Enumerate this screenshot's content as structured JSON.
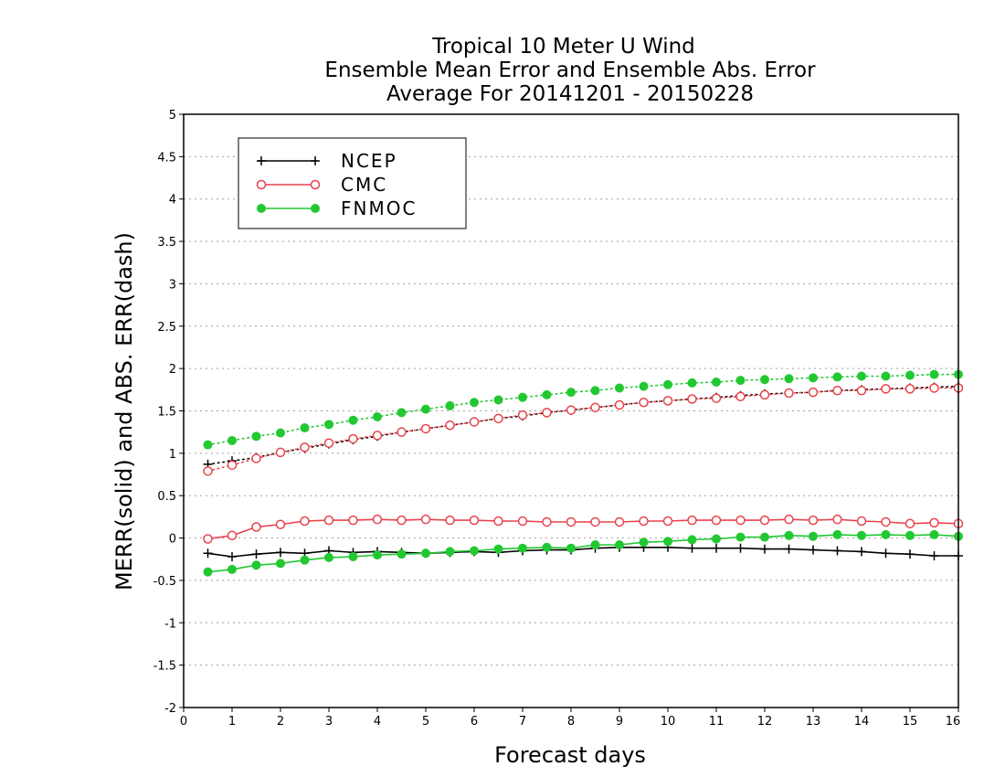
{
  "chart_data": {
    "type": "line",
    "title": [
      "Tropical 10 Meter U Wind",
      "Ensemble Mean Error and Ensemble Abs. Error",
      "Average For 20141201 - 20150228"
    ],
    "xlabel": "Forecast days",
    "ylabel": "MERR(solid) and ABS. ERR(dash)",
    "xlim": [
      0,
      16
    ],
    "ylim": [
      -2,
      5
    ],
    "xticks": [
      0,
      1,
      2,
      3,
      4,
      5,
      6,
      7,
      8,
      9,
      10,
      11,
      12,
      13,
      14,
      15,
      16
    ],
    "yticks": [
      -2,
      -1.5,
      -1,
      -0.5,
      0,
      0.5,
      1,
      1.5,
      2,
      2.5,
      3,
      3.5,
      4,
      4.5,
      5
    ],
    "ytick_labels": [
      "-2",
      "-1.5",
      "-1",
      "-0.5",
      "0",
      "0.5",
      "1",
      "1.5",
      "2",
      "2.5",
      "3",
      "3.5",
      "4",
      "4.5",
      "5"
    ],
    "grid": "horizontal dotted",
    "legend_position": "top-left",
    "x": [
      0.5,
      1,
      1.5,
      2,
      2.5,
      3,
      3.5,
      4,
      4.5,
      5,
      5.5,
      6,
      6.5,
      7,
      7.5,
      8,
      8.5,
      9,
      9.5,
      10,
      10.5,
      11,
      11.5,
      12,
      12.5,
      13,
      13.5,
      14,
      14.5,
      15,
      15.5,
      16
    ],
    "series": [
      {
        "name": "NCEP",
        "color": "#000000",
        "marker": "plus",
        "merr": [
          -0.18,
          -0.22,
          -0.19,
          -0.17,
          -0.18,
          -0.15,
          -0.17,
          -0.16,
          -0.17,
          -0.18,
          -0.17,
          -0.16,
          -0.17,
          -0.15,
          -0.14,
          -0.14,
          -0.12,
          -0.11,
          -0.11,
          -0.11,
          -0.12,
          -0.12,
          -0.12,
          -0.13,
          -0.13,
          -0.14,
          -0.15,
          -0.16,
          -0.18,
          -0.19,
          -0.21,
          -0.21
        ],
        "abs_err": [
          0.87,
          0.91,
          0.95,
          1.01,
          1.06,
          1.11,
          1.16,
          1.2,
          1.25,
          1.29,
          1.33,
          1.37,
          1.41,
          1.44,
          1.48,
          1.51,
          1.54,
          1.57,
          1.6,
          1.62,
          1.64,
          1.66,
          1.68,
          1.7,
          1.71,
          1.72,
          1.74,
          1.75,
          1.76,
          1.77,
          1.78,
          1.79
        ]
      },
      {
        "name": "CMC",
        "color": "#e8434b",
        "marker": "open-circle",
        "merr": [
          -0.01,
          0.03,
          0.13,
          0.16,
          0.2,
          0.21,
          0.21,
          0.22,
          0.21,
          0.22,
          0.21,
          0.21,
          0.2,
          0.2,
          0.19,
          0.19,
          0.19,
          0.19,
          0.2,
          0.2,
          0.21,
          0.21,
          0.21,
          0.21,
          0.22,
          0.21,
          0.22,
          0.2,
          0.19,
          0.17,
          0.18,
          0.17
        ],
        "abs_err": [
          0.79,
          0.86,
          0.94,
          1.01,
          1.07,
          1.12,
          1.17,
          1.21,
          1.25,
          1.29,
          1.33,
          1.37,
          1.41,
          1.45,
          1.48,
          1.51,
          1.54,
          1.57,
          1.6,
          1.62,
          1.64,
          1.65,
          1.67,
          1.69,
          1.71,
          1.72,
          1.74,
          1.74,
          1.76,
          1.76,
          1.77,
          1.77
        ]
      },
      {
        "name": "FNMOC",
        "color": "#22c832",
        "marker": "filled-circle",
        "merr": [
          -0.4,
          -0.37,
          -0.32,
          -0.3,
          -0.26,
          -0.23,
          -0.22,
          -0.2,
          -0.19,
          -0.18,
          -0.16,
          -0.15,
          -0.13,
          -0.12,
          -0.11,
          -0.12,
          -0.08,
          -0.08,
          -0.05,
          -0.04,
          -0.02,
          -0.01,
          0.01,
          0.01,
          0.03,
          0.02,
          0.04,
          0.03,
          0.04,
          0.03,
          0.04,
          0.02
        ],
        "abs_err": [
          1.1,
          1.15,
          1.2,
          1.24,
          1.3,
          1.34,
          1.39,
          1.43,
          1.48,
          1.52,
          1.56,
          1.6,
          1.63,
          1.66,
          1.69,
          1.72,
          1.74,
          1.77,
          1.79,
          1.81,
          1.83,
          1.84,
          1.86,
          1.87,
          1.88,
          1.89,
          1.9,
          1.91,
          1.91,
          1.92,
          1.93,
          1.93
        ]
      }
    ]
  }
}
